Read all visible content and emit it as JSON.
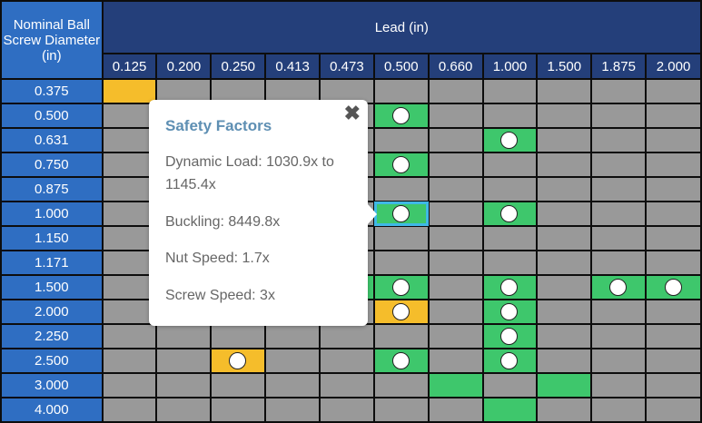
{
  "header": {
    "corner_label": "Nominal Ball Screw Diameter (in)",
    "lead_title": "Lead (in)",
    "leads": [
      "0.125",
      "0.200",
      "0.250",
      "0.413",
      "0.473",
      "0.500",
      "0.660",
      "1.000",
      "1.500",
      "1.875",
      "2.000"
    ]
  },
  "colors": {
    "available": "#3ec76c",
    "caution": "#f5bd2b",
    "unavailable": "#999999",
    "selected_outline": "#3fb8e6",
    "header": "#243f7a",
    "row_header": "#2f6ec2"
  },
  "rows": [
    {
      "diameter": "0.375",
      "cells": [
        "Y",
        "g",
        "g",
        "g",
        "g",
        "g",
        "g",
        "g",
        "g",
        "g",
        "g"
      ]
    },
    {
      "diameter": "0.500",
      "cells": [
        "g",
        "g",
        "g",
        "g",
        "g",
        "Go",
        "g",
        "g",
        "g",
        "g",
        "g"
      ]
    },
    {
      "diameter": "0.631",
      "cells": [
        "g",
        "g",
        "g",
        "g",
        "g",
        "g",
        "g",
        "Go",
        "g",
        "g",
        "g"
      ]
    },
    {
      "diameter": "0.750",
      "cells": [
        "g",
        "g",
        "g",
        "g",
        "g",
        "Go",
        "g",
        "g",
        "g",
        "g",
        "g"
      ]
    },
    {
      "diameter": "0.875",
      "cells": [
        "g",
        "g",
        "g",
        "g",
        "g",
        "g",
        "g",
        "g",
        "g",
        "g",
        "g"
      ]
    },
    {
      "diameter": "1.000",
      "cells": [
        "g",
        "g",
        "g",
        "g",
        "g",
        "Gos",
        "g",
        "Go",
        "g",
        "g",
        "g"
      ]
    },
    {
      "diameter": "1.150",
      "cells": [
        "g",
        "g",
        "g",
        "g",
        "g",
        "g",
        "g",
        "g",
        "g",
        "g",
        "g"
      ]
    },
    {
      "diameter": "1.171",
      "cells": [
        "g",
        "g",
        "g",
        "g",
        "g",
        "g",
        "g",
        "g",
        "g",
        "g",
        "g"
      ]
    },
    {
      "diameter": "1.500",
      "cells": [
        "g",
        "g",
        "g",
        "g",
        "G",
        "Go",
        "g",
        "Go",
        "g",
        "Go",
        "Go"
      ]
    },
    {
      "diameter": "2.000",
      "cells": [
        "g",
        "g",
        "g",
        "g",
        "g",
        "Yo",
        "g",
        "Go",
        "g",
        "g",
        "g"
      ]
    },
    {
      "diameter": "2.250",
      "cells": [
        "g",
        "g",
        "g",
        "g",
        "g",
        "g",
        "g",
        "Go",
        "g",
        "g",
        "g"
      ]
    },
    {
      "diameter": "2.500",
      "cells": [
        "g",
        "g",
        "Yo",
        "g",
        "g",
        "Go",
        "g",
        "Go",
        "g",
        "g",
        "g"
      ]
    },
    {
      "diameter": "3.000",
      "cells": [
        "g",
        "g",
        "g",
        "g",
        "g",
        "g",
        "G",
        "g",
        "G",
        "g",
        "g"
      ]
    },
    {
      "diameter": "4.000",
      "cells": [
        "g",
        "g",
        "g",
        "g",
        "g",
        "g",
        "g",
        "G",
        "g",
        "g",
        "g"
      ]
    }
  ],
  "tooltip": {
    "title": "Safety Factors",
    "close_icon": "close-x-icon",
    "dynamic_load": "Dynamic Load: 1030.9x to 1145.4x",
    "buckling": "Buckling: 8449.8x",
    "nut_speed": "Nut Speed: 1.7x",
    "screw_speed": "Screw Speed: 3x"
  }
}
